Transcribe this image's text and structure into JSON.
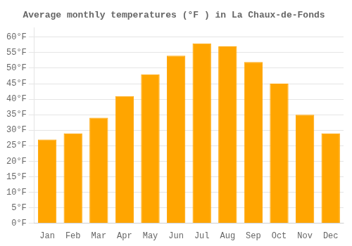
{
  "chart_data": {
    "type": "bar",
    "title": "Average monthly temperatures (°F ) in La Chaux-de-Fonds",
    "categories": [
      "Jan",
      "Feb",
      "Mar",
      "Apr",
      "May",
      "Jun",
      "Jul",
      "Aug",
      "Sep",
      "Oct",
      "Nov",
      "Dec"
    ],
    "values": [
      27,
      29,
      34,
      41,
      48,
      54,
      58,
      57,
      52,
      45,
      35,
      29
    ],
    "color": "#FFA500",
    "ylim": [
      0,
      63
    ],
    "yticks": [
      {
        "value": 0,
        "label": "0°F"
      },
      {
        "value": 5,
        "label": "5°F"
      },
      {
        "value": 10,
        "label": "10°F"
      },
      {
        "value": 15,
        "label": "15°F"
      },
      {
        "value": 20,
        "label": "20°F"
      },
      {
        "value": 25,
        "label": "25°F"
      },
      {
        "value": 30,
        "label": "30°F"
      },
      {
        "value": 35,
        "label": "35°F"
      },
      {
        "value": 40,
        "label": "40°F"
      },
      {
        "value": 45,
        "label": "45°F"
      },
      {
        "value": 50,
        "label": "50°F"
      },
      {
        "value": 55,
        "label": "55°F"
      },
      {
        "value": 60,
        "label": "60°F"
      }
    ],
    "grid": true
  }
}
